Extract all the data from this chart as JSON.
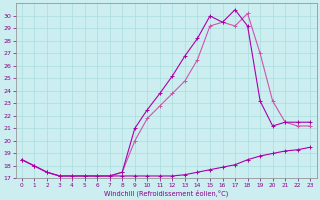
{
  "xlabel": "Windchill (Refroidissement éolien,°C)",
  "xlim": [
    -0.5,
    23.5
  ],
  "ylim": [
    17,
    31
  ],
  "xticks": [
    0,
    1,
    2,
    3,
    4,
    5,
    6,
    7,
    8,
    9,
    10,
    11,
    12,
    13,
    14,
    15,
    16,
    17,
    18,
    19,
    20,
    21,
    22,
    23
  ],
  "yticks": [
    17,
    18,
    19,
    20,
    21,
    22,
    23,
    24,
    25,
    26,
    27,
    28,
    29,
    30
  ],
  "background_color": "#cceef0",
  "grid_color": "#aadddd",
  "series1_color": "#aa00aa",
  "series2_color": "#cc55aa",
  "series3_color": "#aa00aa",
  "series1": {
    "x": [
      0,
      1,
      2,
      3,
      4,
      5,
      6,
      7,
      8,
      9,
      10,
      11,
      12,
      13,
      14,
      15,
      16,
      17,
      18,
      19,
      20,
      21,
      22,
      23
    ],
    "y": [
      18.5,
      18.0,
      17.5,
      17.2,
      17.2,
      17.2,
      17.2,
      17.2,
      17.2,
      17.2,
      17.2,
      17.2,
      17.2,
      17.3,
      17.5,
      17.7,
      17.9,
      18.1,
      18.5,
      18.8,
      19.0,
      19.2,
      19.3,
      19.5
    ]
  },
  "series2": {
    "x": [
      0,
      1,
      2,
      3,
      4,
      5,
      6,
      7,
      8,
      9,
      10,
      11,
      12,
      13,
      14,
      15,
      16,
      17,
      18,
      19,
      20,
      21,
      22,
      23
    ],
    "y": [
      18.5,
      18.0,
      17.5,
      17.2,
      17.2,
      17.2,
      17.2,
      17.2,
      17.5,
      20.0,
      21.8,
      22.8,
      23.8,
      24.8,
      26.5,
      29.2,
      29.5,
      29.2,
      30.2,
      27.0,
      23.2,
      21.5,
      21.2,
      21.2
    ]
  },
  "series3": {
    "x": [
      0,
      1,
      2,
      3,
      4,
      5,
      6,
      7,
      8,
      9,
      10,
      11,
      12,
      13,
      14,
      15,
      16,
      17,
      18,
      19,
      20,
      21,
      22,
      23
    ],
    "y": [
      18.5,
      18.0,
      17.5,
      17.2,
      17.2,
      17.2,
      17.2,
      17.2,
      17.5,
      21.0,
      22.5,
      23.8,
      25.2,
      26.8,
      28.2,
      30.0,
      29.5,
      30.5,
      29.2,
      23.2,
      21.2,
      21.5,
      21.5,
      21.5
    ]
  }
}
